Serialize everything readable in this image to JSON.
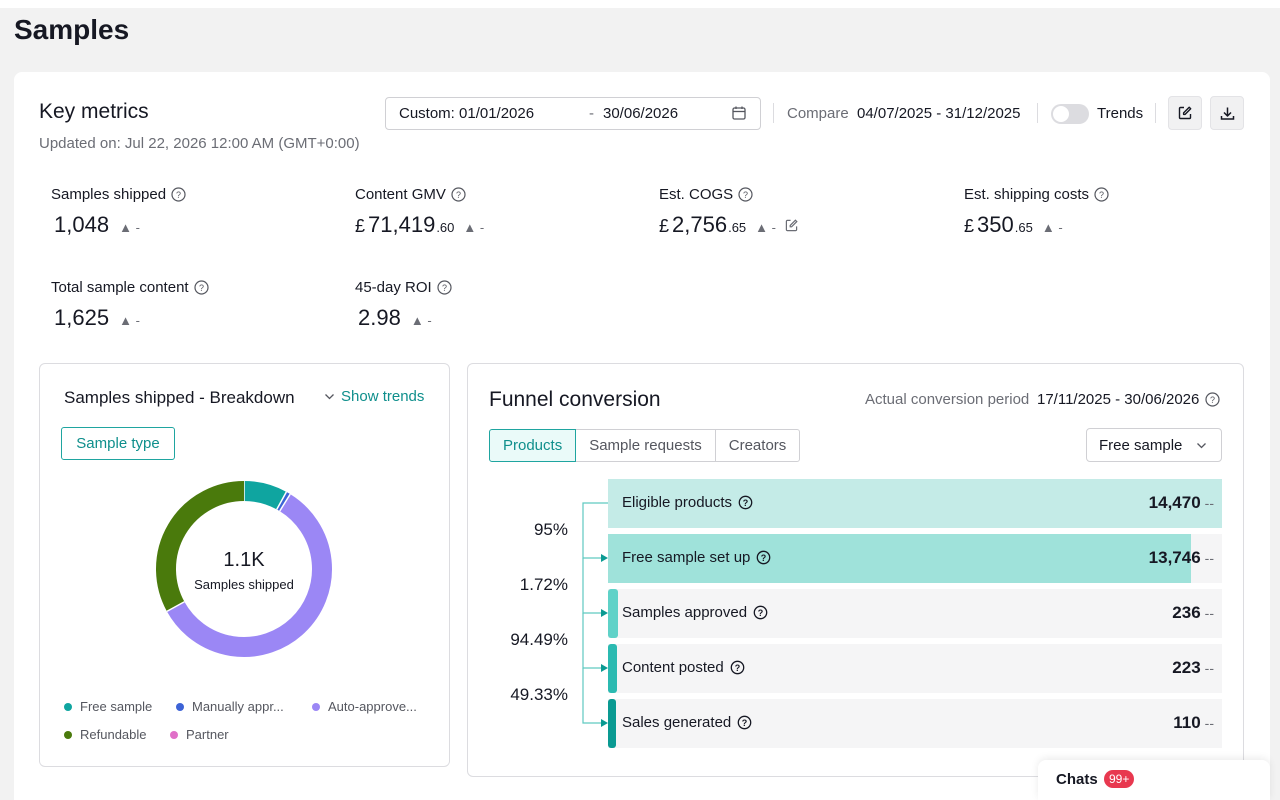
{
  "page": {
    "title": "Samples"
  },
  "key_metrics": {
    "title": "Key metrics",
    "updated": "Updated on: Jul 22, 2026 12:00 AM (GMT+0:00)",
    "date_range": {
      "start": "Custom: 01/01/2026",
      "separator": "-",
      "end": "30/06/2026"
    },
    "compare": {
      "label": "Compare",
      "range": "04/07/2025 - 31/12/2025"
    },
    "trends": {
      "label": "Trends",
      "enabled": false
    },
    "metrics": [
      {
        "label": "Samples shipped",
        "currency": "",
        "value": "1,048",
        "decimal": "",
        "change": "-"
      },
      {
        "label": "Content GMV",
        "currency": "£",
        "value": "71,419",
        "decimal": ".60",
        "change": "-"
      },
      {
        "label": "Est. COGS",
        "currency": "£",
        "value": "2,756",
        "decimal": ".65",
        "change": "-"
      },
      {
        "label": "Est. shipping costs",
        "currency": "£",
        "value": "350",
        "decimal": ".65",
        "change": "-"
      },
      {
        "label": "Total sample content",
        "currency": "",
        "value": "1,625",
        "decimal": "",
        "change": "-"
      },
      {
        "label": "45-day ROI",
        "currency": "",
        "value": "2.98",
        "decimal": "",
        "change": "-"
      }
    ]
  },
  "breakdown": {
    "title": "Samples shipped - Breakdown",
    "show_trends": "Show trends",
    "chip": "Sample type",
    "center_value": "1.1K",
    "center_label": "Samples shipped",
    "segments": [
      {
        "name": "Free sample",
        "fraction": 0.08,
        "color": "#0fa5a0"
      },
      {
        "name": "Manually appr...",
        "fraction": 0.008,
        "color": "#3d63d6"
      },
      {
        "name": "Auto-approve...",
        "fraction": 0.582,
        "color": "#9b87f5"
      },
      {
        "name": "Refundable",
        "fraction": 0.33,
        "color": "#4a7a0c"
      },
      {
        "name": "Partner",
        "fraction": 0.0,
        "color": "#e070c8"
      }
    ]
  },
  "funnel": {
    "title": "Funnel conversion",
    "period_label": "Actual conversion period",
    "period": "17/11/2025 - 30/06/2026",
    "tabs": [
      "Products",
      "Sample requests",
      "Creators"
    ],
    "select": "Free sample",
    "steps": [
      {
        "label": "Eligible products",
        "value": "14,470",
        "change": "--",
        "fill": 1.0,
        "color": "#c4ebe7"
      },
      {
        "label": "Free sample set up",
        "value": "13,746",
        "change": "--",
        "fill": 0.95,
        "color": "#9fe2da"
      },
      {
        "label": "Samples approved",
        "value": "236",
        "change": "--",
        "fill": 0.016,
        "color": "#5fd2c8"
      },
      {
        "label": "Content posted",
        "value": "223",
        "change": "--",
        "fill": 0.015,
        "color": "#2bbab1"
      },
      {
        "label": "Sales generated",
        "value": "110",
        "change": "--",
        "fill": 0.008,
        "color": "#0a9a92"
      }
    ],
    "conversion_rates": [
      "95%",
      "1.72%",
      "94.49%",
      "49.33%"
    ]
  },
  "chats": {
    "label": "Chats",
    "badge": "99+"
  }
}
